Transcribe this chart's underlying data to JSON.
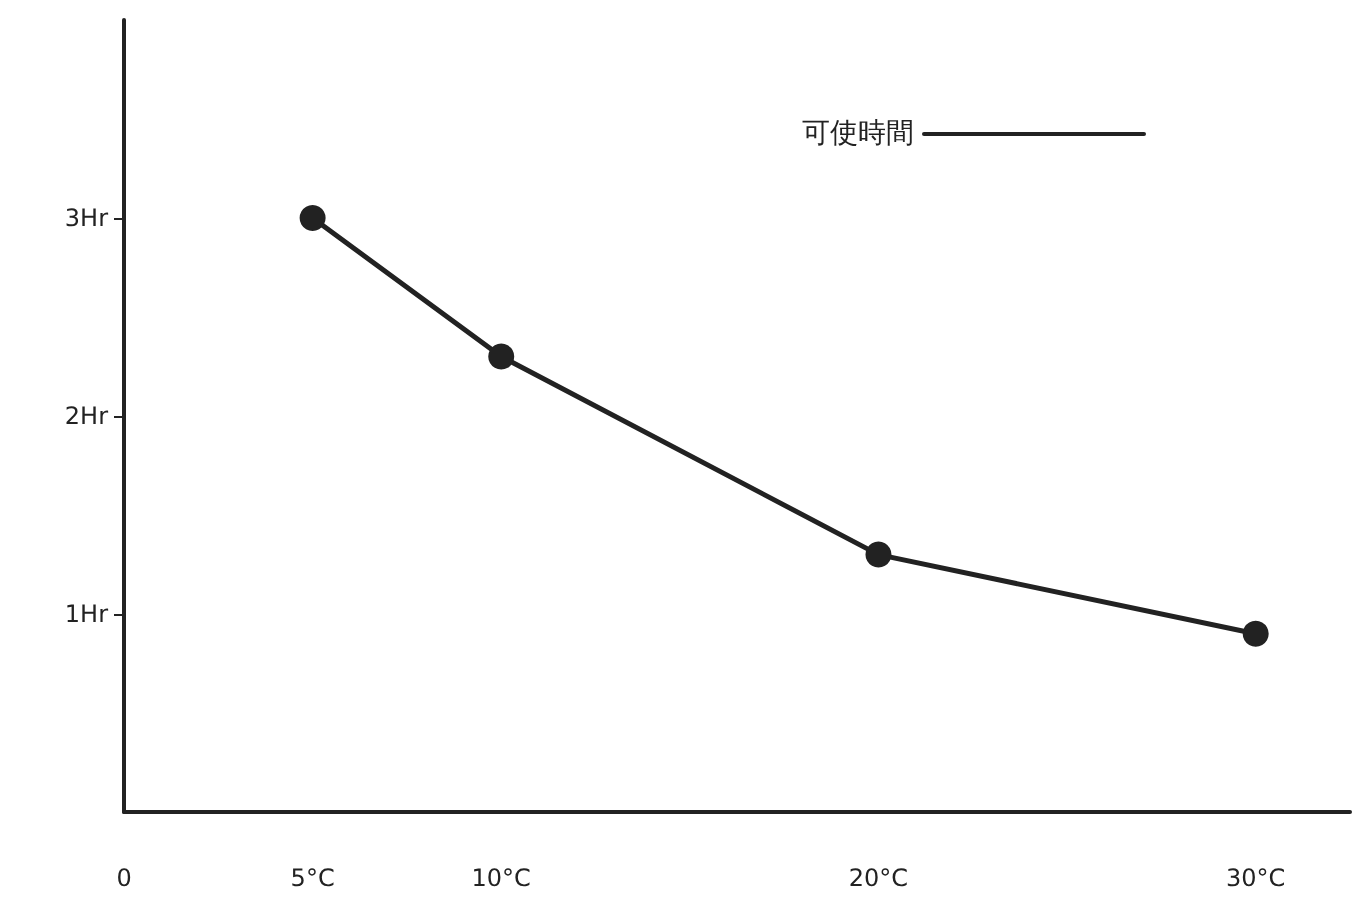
{
  "chart_data": {
    "type": "line",
    "x": [
      5,
      10,
      20,
      30
    ],
    "series": [
      {
        "name": "可使時間",
        "color": "#222222",
        "values": [
          3.0,
          2.3,
          1.3,
          0.9
        ]
      }
    ],
    "xlim": [
      0,
      32.5
    ],
    "xticks": [
      {
        "value": 0,
        "label": "0"
      },
      {
        "value": 5,
        "label": "5°C"
      },
      {
        "value": 10,
        "label": "10°C"
      },
      {
        "value": 20,
        "label": "20°C"
      },
      {
        "value": 30,
        "label": "30°C"
      }
    ],
    "ylim": [
      0,
      4
    ],
    "yticks": [
      {
        "value": 1,
        "label": "1Hr"
      },
      {
        "value": 2,
        "label": "2Hr"
      },
      {
        "value": 3,
        "label": "3Hr"
      }
    ],
    "grid": false,
    "legend": "top right",
    "marker": "circle",
    "line_style": "solid"
  }
}
